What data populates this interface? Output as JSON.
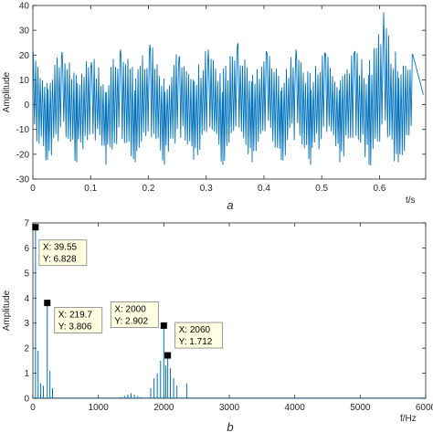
{
  "chart_data": [
    {
      "type": "line",
      "caption": "a",
      "xlabel": "t/s",
      "ylabel": "Amplitude",
      "xlim": [
        0,
        0.68
      ],
      "ylim": [
        -30,
        40
      ],
      "xticks": [
        0,
        0.1,
        0.2,
        0.3,
        0.4,
        0.5,
        0.6
      ],
      "xtick_labels": [
        "0",
        "0.1",
        "0.2",
        "0.3",
        "0.4",
        "0.5",
        "0.6"
      ],
      "yticks": [
        -30,
        -20,
        -10,
        0,
        10,
        20,
        30,
        40
      ],
      "ytick_labels": [
        "-30",
        "-20",
        "-10",
        "0",
        "10",
        "20",
        "30",
        "40"
      ],
      "color": "#0072bd",
      "series": [
        {
          "x": [
            0,
            0.0253,
            0.0506,
            0.0759,
            0.1012,
            0.1265,
            0.1518,
            0.1771,
            0.2024,
            0.2277,
            0.253,
            0.2783,
            0.3036,
            0.3289,
            0.3542,
            0.3795,
            0.4048,
            0.4301,
            0.4554,
            0.4807,
            0.506,
            0.5313,
            0.5566,
            0.5819,
            0.6072,
            0.6325,
            0.6578
          ],
          "y": [
            22,
            -22,
            21,
            -23,
            17,
            -24,
            22,
            -23,
            24,
            -24,
            19,
            -22,
            22,
            -24,
            24,
            -23,
            21,
            -22,
            22,
            -24,
            20,
            -23,
            21,
            -24,
            37,
            -23,
            20
          ]
        }
      ]
    },
    {
      "type": "line",
      "caption": "b",
      "xlabel": "f/Hz",
      "ylabel": "Amplitude",
      "xlim": [
        0,
        6000
      ],
      "ylim": [
        0,
        7
      ],
      "xticks": [
        0,
        1000,
        2000,
        3000,
        4000,
        5000,
        6000
      ],
      "xtick_labels": [
        "0",
        "1000",
        "2000",
        "3000",
        "4000",
        "5000",
        "6000"
      ],
      "yticks": [
        0,
        1,
        2,
        3,
        4,
        5,
        6,
        7
      ],
      "ytick_labels": [
        "0",
        "1",
        "2",
        "3",
        "4",
        "5",
        "6",
        "7"
      ],
      "color": "#0072bd",
      "series": [
        {
          "x": [
            39.55,
            80,
            120,
            160,
            219.7,
            260,
            300,
            1350,
            1400,
            1450,
            1500,
            1550,
            1600,
            1650,
            1800,
            1850,
            1900,
            1950,
            2000,
            2030,
            2060,
            2100,
            2150,
            2200,
            2350
          ],
          "y": [
            6.828,
            1.9,
            0.6,
            0.5,
            3.806,
            1.1,
            0.4,
            0.05,
            0.1,
            0.15,
            0.2,
            0.15,
            0.1,
            0.05,
            0.4,
            0.8,
            1.0,
            1.5,
            2.902,
            1.3,
            1.712,
            1.2,
            0.8,
            0.5,
            0.6
          ]
        }
      ],
      "annotations": [
        {
          "x_text": "X: 39.55",
          "y_text": "Y: 6.828",
          "x": 39.55,
          "y": 6.828
        },
        {
          "x_text": "X: 219.7",
          "y_text": "Y: 3.806",
          "x": 219.7,
          "y": 3.806
        },
        {
          "x_text": "X: 2000",
          "y_text": "Y: 2.902",
          "x": 2000,
          "y": 2.902
        },
        {
          "x_text": "X: 2060",
          "y_text": "Y: 1.712",
          "x": 2060,
          "y": 1.712
        }
      ]
    }
  ]
}
